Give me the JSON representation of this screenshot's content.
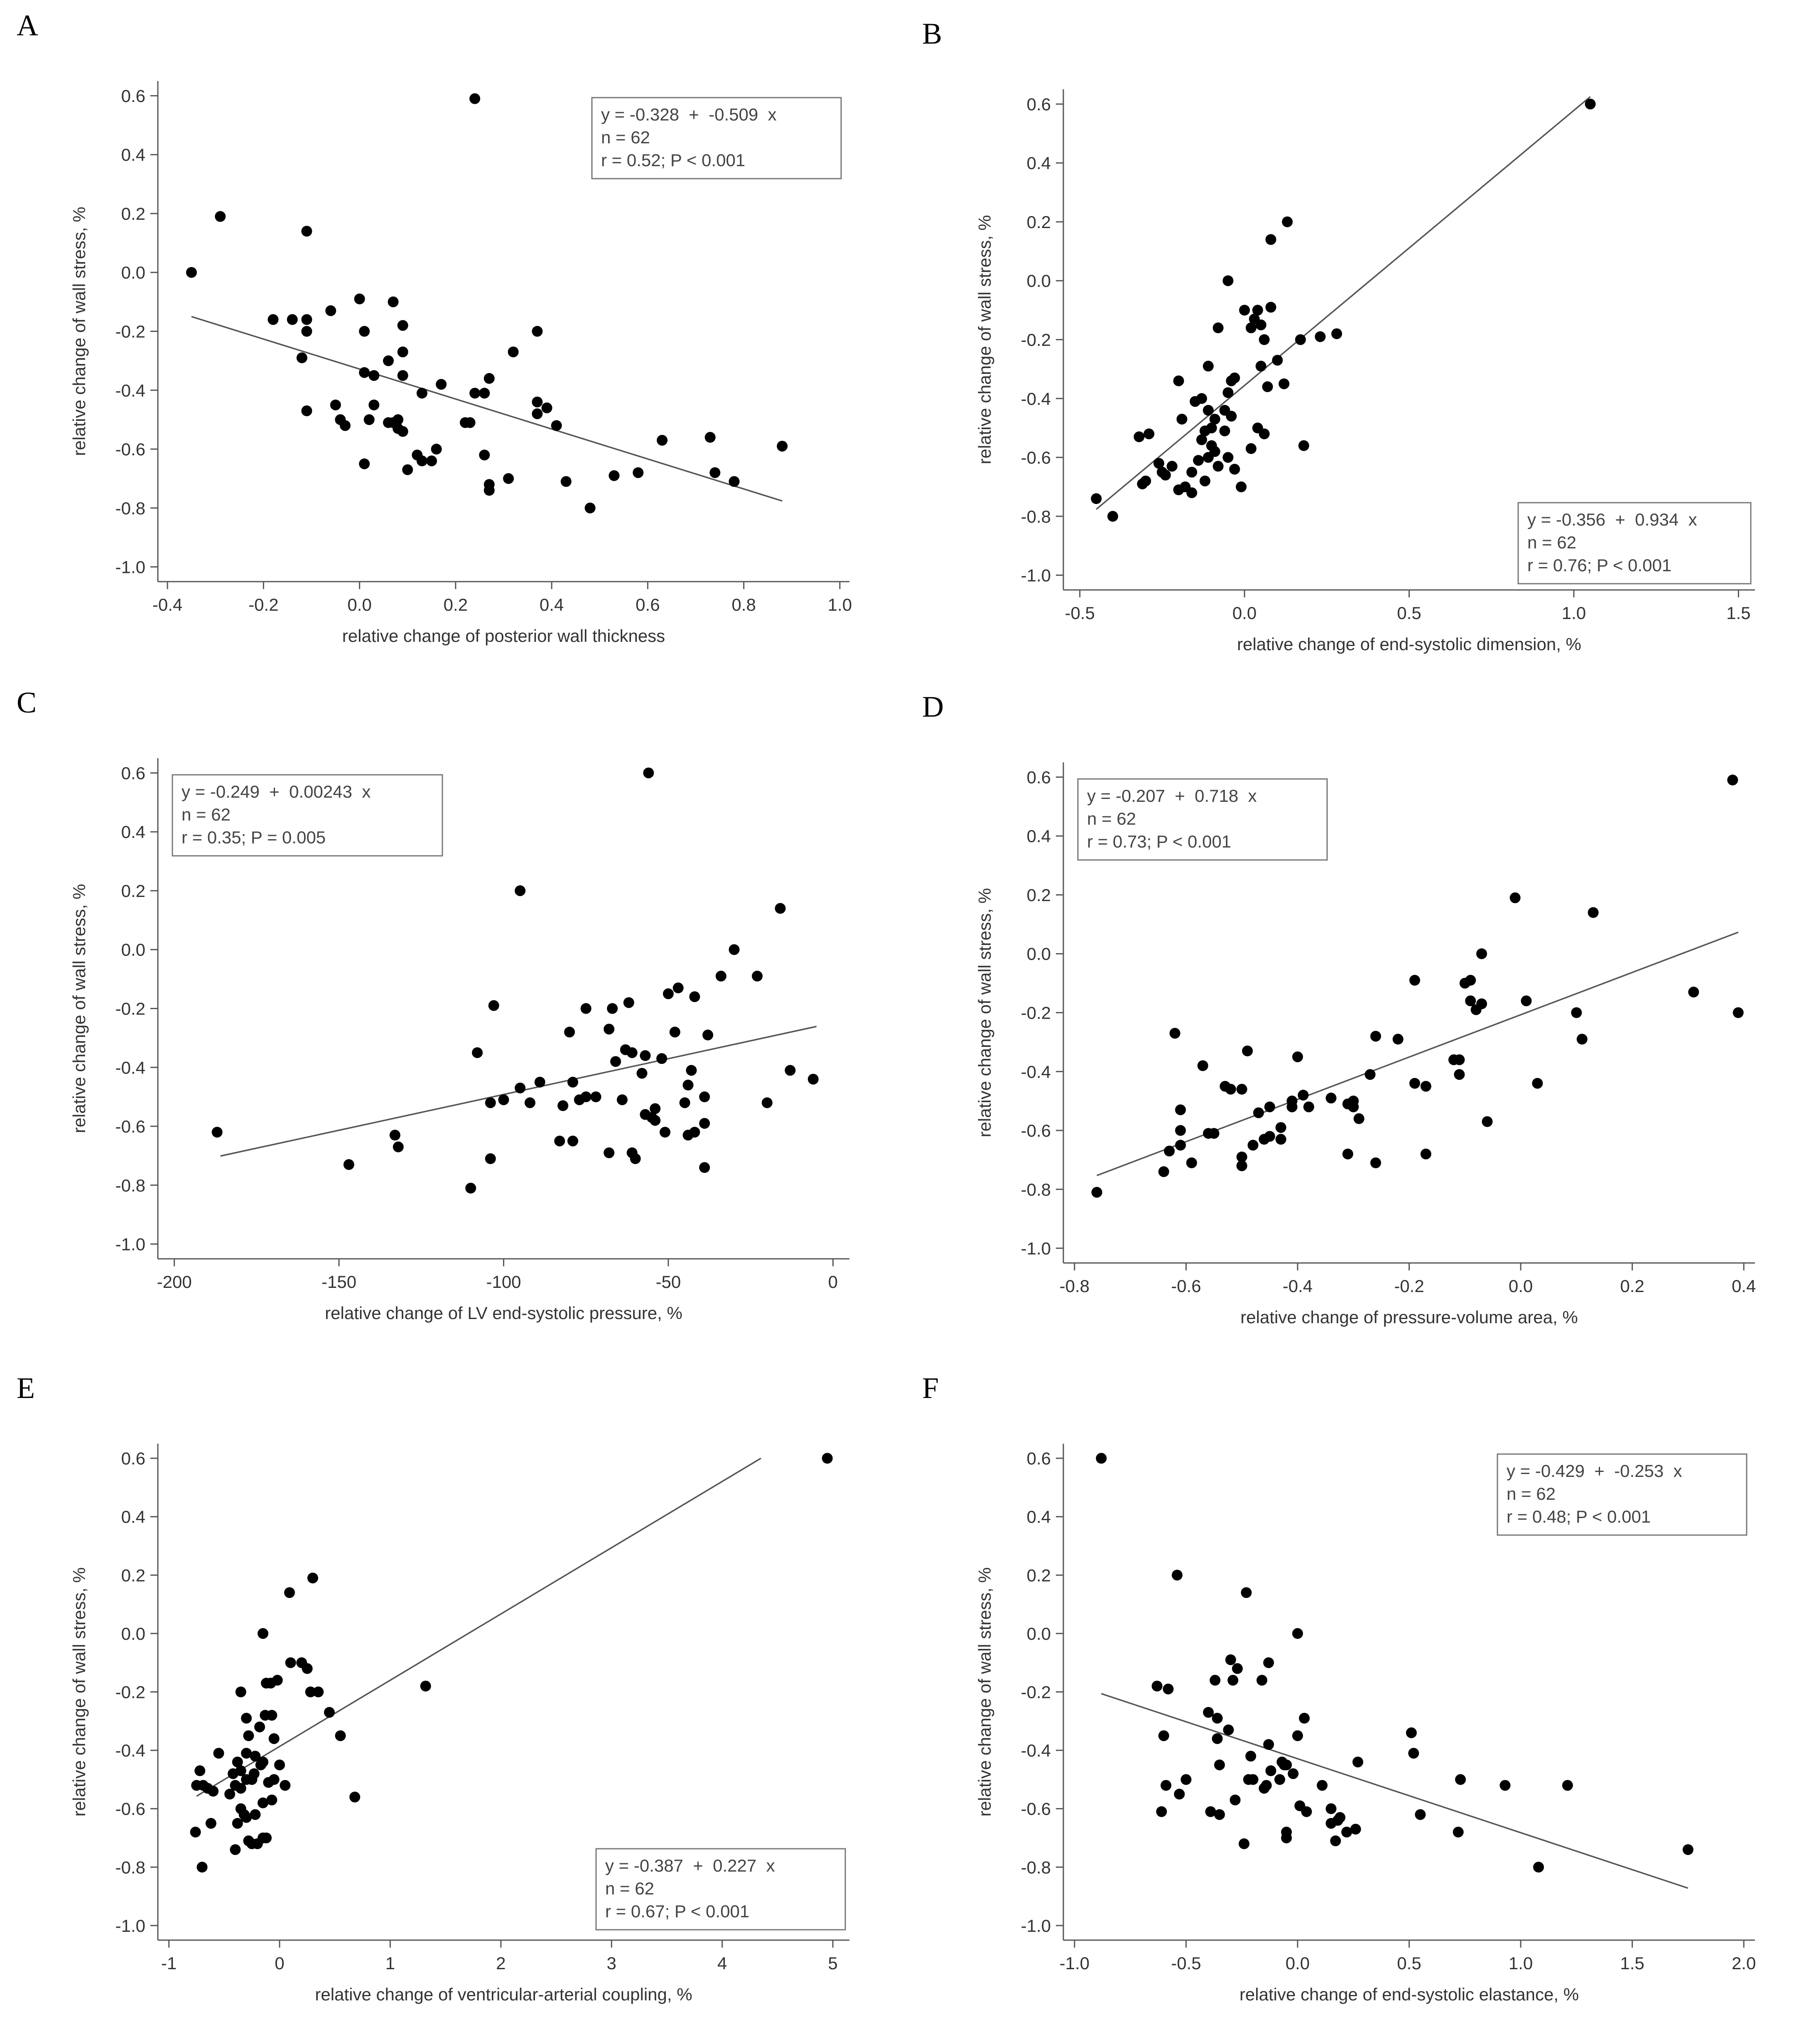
{
  "chart_data": [
    {
      "type": "scatter",
      "panel": "A",
      "xlabel": "relative change of posterior wall thickness",
      "ylabel": "relative change of wall stress, %",
      "xlim": [
        -0.42,
        1.02
      ],
      "ylim": [
        -1.05,
        0.65
      ],
      "xticks": [
        -0.4,
        -0.2,
        0.0,
        0.2,
        0.4,
        0.6,
        0.8,
        1.0
      ],
      "xticklabels": [
        "-0.4",
        "-0.2",
        "0.0",
        "0.2",
        "0.4",
        "0.6",
        "0.8",
        "1.0"
      ],
      "yticks": [
        0.6,
        0.4,
        0.2,
        0.0,
        -0.2,
        -0.4,
        -0.6,
        -0.8,
        -1.0
      ],
      "yticklabels": [
        "0.6",
        "0.4",
        "0.2",
        "0.0",
        "-0.2",
        "-0.4",
        "-0.6",
        "-0.8",
        "-1.0"
      ],
      "stats": [
        "y = -0.328  +  -0.509  x",
        "n = 62",
        "r = 0.52; P < 0.001"
      ],
      "legend_position": "top-right",
      "fit_line": [
        [
          -0.35,
          -0.15
        ],
        [
          0.88,
          -0.776
        ]
      ],
      "x": [
        -0.35,
        -0.29,
        -0.11,
        0.24,
        -0.18,
        -0.14,
        -0.11,
        -0.11,
        -0.06,
        0.0,
        0.07,
        0.09,
        0.01,
        0.09,
        -0.12,
        0.37,
        0.03,
        0.01,
        0.09,
        0.06,
        0.27,
        0.32,
        0.17,
        -0.11,
        0.13,
        0.24,
        0.26,
        0.37,
        0.39,
        -0.05,
        -0.04,
        0.08,
        0.03,
        0.06,
        0.02,
        0.12,
        0.09,
        0.37,
        0.41,
        0.23,
        0.22,
        0.16,
        0.13,
        0.1,
        0.01,
        0.26,
        0.15,
        0.63,
        0.73,
        0.58,
        0.53,
        0.74,
        0.88,
        0.78,
        0.43,
        0.31,
        0.27,
        0.27,
        0.48,
        0.08,
        -0.03,
        0.07
      ],
      "y": [
        0.0,
        0.19,
        0.14,
        0.59,
        -0.16,
        -0.16,
        -0.16,
        -0.2,
        -0.13,
        -0.09,
        -0.1,
        -0.18,
        -0.2,
        -0.27,
        -0.29,
        -0.2,
        -0.35,
        -0.34,
        -0.35,
        -0.3,
        -0.36,
        -0.27,
        -0.38,
        -0.47,
        -0.41,
        -0.41,
        -0.41,
        -0.44,
        -0.46,
        -0.45,
        -0.5,
        -0.5,
        -0.45,
        -0.51,
        -0.5,
        -0.62,
        -0.54,
        -0.48,
        -0.52,
        -0.51,
        -0.51,
        -0.6,
        -0.64,
        -0.67,
        -0.65,
        -0.62,
        -0.64,
        -0.57,
        -0.56,
        -0.68,
        -0.69,
        -0.68,
        -0.59,
        -0.71,
        -0.71,
        -0.7,
        -0.72,
        -0.74,
        -0.8,
        -0.53,
        -0.52,
        -0.51
      ]
    },
    {
      "type": "scatter",
      "panel": "B",
      "xlabel": "relative change of end-systolic dimension, %",
      "ylabel": "relative change of wall stress, %",
      "xlim": [
        -0.55,
        1.55
      ],
      "ylim": [
        -1.05,
        0.65
      ],
      "xticks": [
        -0.5,
        0.0,
        0.5,
        1.0,
        1.5
      ],
      "xticklabels": [
        "-0.5",
        "0.0",
        "0.5",
        "1.0",
        "1.5"
      ],
      "yticks": [
        0.6,
        0.4,
        0.2,
        0.0,
        -0.2,
        -0.4,
        -0.6,
        -0.8,
        -1.0
      ],
      "yticklabels": [
        "0.6",
        "0.4",
        "0.2",
        "0.0",
        "-0.2",
        "-0.4",
        "-0.6",
        "-0.8",
        "-1.0"
      ],
      "stats": [
        "y = -0.356  +  0.934  x",
        "n = 62",
        "r = 0.76; P < 0.001"
      ],
      "legend_position": "bottom-right",
      "fit_line": [
        [
          -0.45,
          -0.776
        ],
        [
          1.05,
          0.625
        ]
      ],
      "x": [
        1.05,
        -0.05,
        0.13,
        0.08,
        0.0,
        0.04,
        0.08,
        0.03,
        0.02,
        0.05,
        0.06,
        -0.08,
        -0.04,
        0.12,
        0.1,
        0.17,
        0.23,
        0.28,
        0.05,
        0.07,
        -0.05,
        -0.11,
        -0.2,
        -0.13,
        -0.06,
        -0.04,
        -0.11,
        -0.09,
        -0.03,
        -0.1,
        -0.12,
        -0.15,
        -0.19,
        -0.29,
        -0.32,
        -0.06,
        -0.1,
        -0.13,
        0.04,
        0.06,
        0.02,
        0.18,
        -0.11,
        -0.09,
        -0.14,
        -0.08,
        -0.16,
        -0.22,
        -0.24,
        -0.26,
        -0.25,
        -0.3,
        -0.31,
        -0.18,
        -0.2,
        -0.12,
        -0.16,
        -0.01,
        -0.03,
        -0.45,
        -0.4,
        -0.05
      ],
      "y": [
        0.6,
        0.0,
        0.2,
        0.14,
        -0.1,
        -0.1,
        -0.09,
        -0.13,
        -0.16,
        -0.15,
        -0.2,
        -0.16,
        -0.34,
        -0.35,
        -0.27,
        -0.2,
        -0.19,
        -0.18,
        -0.29,
        -0.36,
        -0.38,
        -0.29,
        -0.34,
        -0.4,
        -0.44,
        -0.46,
        -0.44,
        -0.47,
        -0.33,
        -0.5,
        -0.51,
        -0.41,
        -0.47,
        -0.52,
        -0.53,
        -0.51,
        -0.56,
        -0.54,
        -0.5,
        -0.52,
        -0.57,
        -0.56,
        -0.6,
        -0.58,
        -0.61,
        -0.63,
        -0.65,
        -0.63,
        -0.66,
        -0.62,
        -0.65,
        -0.68,
        -0.69,
        -0.7,
        -0.71,
        -0.68,
        -0.72,
        -0.7,
        -0.64,
        -0.74,
        -0.8,
        -0.6
      ]
    },
    {
      "type": "scatter",
      "panel": "C",
      "xlabel": "relative change of LV end-systolic pressure, %",
      "ylabel": "relative change of wall stress, %",
      "xlim": [
        -205,
        5
      ],
      "ylim": [
        -1.05,
        0.65
      ],
      "xticks": [
        -200,
        -150,
        -100,
        -50,
        0
      ],
      "xticklabels": [
        "-200",
        "-150",
        "-100",
        "-50",
        "0"
      ],
      "yticks": [
        0.6,
        0.4,
        0.2,
        0.0,
        -0.2,
        -0.4,
        -0.6,
        -0.8,
        -1.0
      ],
      "yticklabels": [
        "0.6",
        "0.4",
        "0.2",
        "0.0",
        "-0.2",
        "-0.4",
        "-0.6",
        "-0.8",
        "-1.0"
      ],
      "stats": [
        "y = -0.249  +  0.00243  x",
        "n = 62",
        "r = 0.35; P = 0.005"
      ],
      "legend_position": "top-left",
      "fit_line": [
        [
          -186,
          -0.701
        ],
        [
          -5,
          -0.261
        ]
      ],
      "x": [
        -56,
        -95,
        -16,
        -30,
        -23,
        -103,
        -47,
        -42,
        -62,
        -67,
        -75,
        -61,
        -57,
        -50,
        -34,
        -108,
        -80,
        -68,
        -66,
        -63,
        -38,
        -52,
        -48,
        -43,
        -58,
        -44,
        -89,
        -92,
        -95,
        -79,
        -82,
        -77,
        -75,
        -72,
        -64,
        -54,
        -45,
        -39,
        -44,
        -54,
        -20,
        -13,
        -6,
        -104,
        -100,
        -55,
        -51,
        -39,
        -42,
        -57,
        -61,
        -60,
        -68,
        -83,
        -79,
        -39,
        -104,
        -110,
        -133,
        -132,
        -147,
        -187
      ],
      "y": [
        0.6,
        0.2,
        0.14,
        0.0,
        -0.09,
        -0.19,
        -0.13,
        -0.16,
        -0.18,
        -0.2,
        -0.2,
        -0.35,
        -0.36,
        -0.15,
        -0.09,
        -0.35,
        -0.28,
        -0.27,
        -0.38,
        -0.34,
        -0.29,
        -0.37,
        -0.28,
        -0.41,
        -0.42,
        -0.46,
        -0.45,
        -0.52,
        -0.47,
        -0.45,
        -0.53,
        -0.51,
        -0.5,
        -0.5,
        -0.51,
        -0.54,
        -0.52,
        -0.5,
        -0.63,
        -0.58,
        -0.52,
        -0.41,
        -0.44,
        -0.52,
        -0.51,
        -0.57,
        -0.62,
        -0.59,
        -0.62,
        -0.56,
        -0.69,
        -0.71,
        -0.69,
        -0.65,
        -0.65,
        -0.74,
        -0.71,
        -0.81,
        -0.63,
        -0.67,
        -0.73,
        -0.62
      ]
    },
    {
      "type": "scatter",
      "panel": "D",
      "xlabel": "relative change of pressure-volume area, %",
      "ylabel": "relative change of wall stress, %",
      "xlim": [
        -0.82,
        0.42
      ],
      "ylim": [
        -1.05,
        0.65
      ],
      "xticks": [
        -0.8,
        -0.6,
        -0.4,
        -0.2,
        0.0,
        0.2,
        0.4
      ],
      "xticklabels": [
        "-0.8",
        "-0.6",
        "-0.4",
        "-0.2",
        "0.0",
        "0.2",
        "0.4"
      ],
      "yticks": [
        0.6,
        0.4,
        0.2,
        0.0,
        -0.2,
        -0.4,
        -0.6,
        -0.8,
        -1.0
      ],
      "yticklabels": [
        "0.6",
        "0.4",
        "0.2",
        "0.0",
        "-0.2",
        "-0.4",
        "-0.6",
        "-0.8",
        "-1.0"
      ],
      "stats": [
        "y = -0.207  +  0.718  x",
        "n = 62",
        "r = 0.73; P < 0.001"
      ],
      "legend_position": "top-left",
      "fit_line": [
        [
          -0.76,
          -0.753
        ],
        [
          0.39,
          0.073
        ]
      ],
      "x": [
        0.38,
        -0.01,
        0.13,
        -0.07,
        0.31,
        0.39,
        -0.19,
        -0.1,
        -0.09,
        -0.07,
        -0.08,
        0.01,
        0.1,
        0.11,
        -0.06,
        0.03,
        -0.62,
        -0.57,
        -0.49,
        -0.4,
        -0.53,
        -0.52,
        -0.26,
        -0.22,
        -0.12,
        -0.11,
        -0.27,
        -0.17,
        -0.19,
        -0.34,
        -0.3,
        -0.31,
        -0.39,
        -0.41,
        -0.45,
        -0.61,
        -0.47,
        -0.55,
        -0.5,
        -0.41,
        -0.38,
        -0.43,
        -0.3,
        -0.29,
        -0.31,
        -0.56,
        -0.63,
        -0.61,
        -0.61,
        -0.43,
        -0.45,
        -0.46,
        -0.48,
        -0.5,
        -0.5,
        -0.59,
        -0.64,
        -0.26,
        -0.11,
        -0.17,
        -0.09,
        -0.76
      ],
      "y": [
        0.59,
        0.19,
        0.14,
        0.0,
        -0.13,
        -0.2,
        -0.09,
        -0.1,
        -0.16,
        -0.17,
        -0.19,
        -0.16,
        -0.2,
        -0.29,
        -0.57,
        -0.44,
        -0.27,
        -0.38,
        -0.33,
        -0.35,
        -0.45,
        -0.46,
        -0.28,
        -0.29,
        -0.36,
        -0.41,
        -0.41,
        -0.45,
        -0.44,
        -0.49,
        -0.5,
        -0.51,
        -0.48,
        -0.5,
        -0.52,
        -0.53,
        -0.54,
        -0.61,
        -0.46,
        -0.52,
        -0.52,
        -0.59,
        -0.52,
        -0.56,
        -0.68,
        -0.61,
        -0.67,
        -0.6,
        -0.65,
        -0.63,
        -0.62,
        -0.63,
        -0.65,
        -0.69,
        -0.72,
        -0.71,
        -0.74,
        -0.71,
        -0.36,
        -0.68,
        -0.09,
        -0.81
      ]
    },
    {
      "type": "scatter",
      "panel": "E",
      "xlabel": "relative change of ventricular-arterial coupling, %",
      "ylabel": "relative change of wall stress, %",
      "xlim": [
        -1.1,
        5.15
      ],
      "ylim": [
        -1.05,
        0.65
      ],
      "xticks": [
        -1,
        0,
        1,
        2,
        3,
        4,
        5
      ],
      "xticklabels": [
        "-1",
        "0",
        "1",
        "2",
        "3",
        "4",
        "5"
      ],
      "yticks": [
        0.6,
        0.4,
        0.2,
        0.0,
        -0.2,
        -0.4,
        -0.6,
        -0.8,
        -1.0
      ],
      "yticklabels": [
        "0.6",
        "0.4",
        "0.2",
        "0.0",
        "-0.2",
        "-0.4",
        "-0.6",
        "-0.8",
        "-1.0"
      ],
      "stats": [
        "y = -0.387  +  0.227  x",
        "n = 62",
        "r = 0.67; P < 0.001"
      ],
      "legend_position": "bottom-right",
      "fit_line": [
        [
          -0.75,
          -0.557
        ],
        [
          4.35,
          0.6
        ]
      ],
      "x": [
        4.95,
        0.3,
        0.09,
        -0.15,
        0.2,
        0.1,
        0.25,
        -0.35,
        -0.02,
        -0.12,
        -0.08,
        0.35,
        1.32,
        0.28,
        -0.13,
        -0.3,
        -0.18,
        -0.07,
        -0.05,
        -0.28,
        -0.22,
        -0.3,
        0.45,
        0.55,
        -0.15,
        0.0,
        -0.38,
        -0.35,
        -0.17,
        -0.23,
        -0.25,
        -0.3,
        -0.1,
        -0.45,
        -0.4,
        -0.35,
        -0.42,
        -0.15,
        -0.07,
        0.05,
        -0.75,
        -0.69,
        -0.65,
        -0.72,
        -0.6,
        -0.55,
        -0.62,
        -0.35,
        -0.32,
        -0.3,
        -0.38,
        -0.28,
        -0.2,
        -0.15,
        -0.05,
        -0.22,
        -0.4,
        -0.25,
        -0.12,
        0.68,
        -0.76,
        -0.7
      ],
      "y": [
        0.6,
        0.19,
        0.14,
        0.0,
        -0.1,
        -0.1,
        -0.12,
        -0.2,
        -0.16,
        -0.17,
        -0.17,
        -0.2,
        -0.18,
        -0.2,
        -0.28,
        -0.29,
        -0.32,
        -0.28,
        -0.36,
        -0.35,
        -0.42,
        -0.41,
        -0.27,
        -0.35,
        -0.44,
        -0.45,
        -0.44,
        -0.47,
        -0.45,
        -0.48,
        -0.5,
        -0.5,
        -0.51,
        -0.55,
        -0.52,
        -0.53,
        -0.48,
        -0.58,
        -0.57,
        -0.52,
        -0.52,
        -0.52,
        -0.53,
        -0.47,
        -0.54,
        -0.41,
        -0.65,
        -0.6,
        -0.62,
        -0.63,
        -0.65,
        -0.71,
        -0.72,
        -0.7,
        -0.5,
        -0.62,
        -0.74,
        -0.72,
        -0.7,
        -0.56,
        -0.68,
        -0.8
      ]
    },
    {
      "type": "scatter",
      "panel": "F",
      "xlabel": "relative change of end-systolic elastance, %",
      "ylabel": "relative change of wall stress, %",
      "xlim": [
        -1.05,
        2.05
      ],
      "ylim": [
        -1.05,
        0.65
      ],
      "xticks": [
        -1.0,
        -0.5,
        0.0,
        0.5,
        1.0,
        1.5,
        2.0
      ],
      "xticklabels": [
        "-1.0",
        "-0.5",
        "0.0",
        "0.5",
        "1.0",
        "1.5",
        "2.0"
      ],
      "yticks": [
        0.6,
        0.4,
        0.2,
        0.0,
        -0.2,
        -0.4,
        -0.6,
        -0.8,
        -1.0
      ],
      "yticklabels": [
        "0.6",
        "0.4",
        "0.2",
        "0.0",
        "-0.2",
        "-0.4",
        "-0.6",
        "-0.8",
        "-1.0"
      ],
      "stats": [
        "y = -0.429  +  -0.253  x",
        "n = 62",
        "r = 0.48; P < 0.001"
      ],
      "legend_position": "top-right",
      "fit_line": [
        [
          -0.88,
          -0.206
        ],
        [
          1.75,
          -0.872
        ]
      ],
      "x": [
        -0.88,
        -0.54,
        -0.23,
        0.0,
        -0.13,
        -0.3,
        -0.29,
        -0.37,
        -0.27,
        -0.16,
        -0.63,
        -0.58,
        -0.6,
        -0.4,
        -0.36,
        0.03,
        -0.31,
        -0.36,
        -0.13,
        -0.21,
        0.0,
        -0.5,
        -0.35,
        -0.2,
        -0.07,
        -0.06,
        -0.12,
        0.51,
        0.52,
        0.27,
        -0.59,
        -0.28,
        -0.02,
        -0.35,
        -0.08,
        0.01,
        0.11,
        0.73,
        0.93,
        1.21,
        -0.61,
        -0.39,
        -0.53,
        0.04,
        0.15,
        0.19,
        0.26,
        0.22,
        0.15,
        0.17,
        0.55,
        0.72,
        1.08,
        1.75,
        -0.05,
        -0.24,
        -0.05,
        -0.14,
        -0.22,
        0.18,
        -0.05,
        -0.15
      ],
      "y": [
        0.6,
        0.2,
        0.14,
        0.0,
        -0.1,
        -0.09,
        -0.16,
        -0.16,
        -0.12,
        -0.16,
        -0.18,
        -0.19,
        -0.35,
        -0.27,
        -0.29,
        -0.29,
        -0.33,
        -0.36,
        -0.38,
        -0.42,
        -0.35,
        -0.5,
        -0.45,
        -0.5,
        -0.44,
        -0.45,
        -0.47,
        -0.34,
        -0.41,
        -0.44,
        -0.52,
        -0.57,
        -0.48,
        -0.62,
        -0.5,
        -0.59,
        -0.52,
        -0.5,
        -0.52,
        -0.52,
        -0.61,
        -0.61,
        -0.55,
        -0.61,
        -0.6,
        -0.63,
        -0.67,
        -0.68,
        -0.65,
        -0.71,
        -0.62,
        -0.68,
        -0.8,
        -0.74,
        -0.68,
        -0.72,
        -0.7,
        -0.52,
        -0.5,
        -0.64,
        -0.45,
        -0.53
      ]
    }
  ]
}
